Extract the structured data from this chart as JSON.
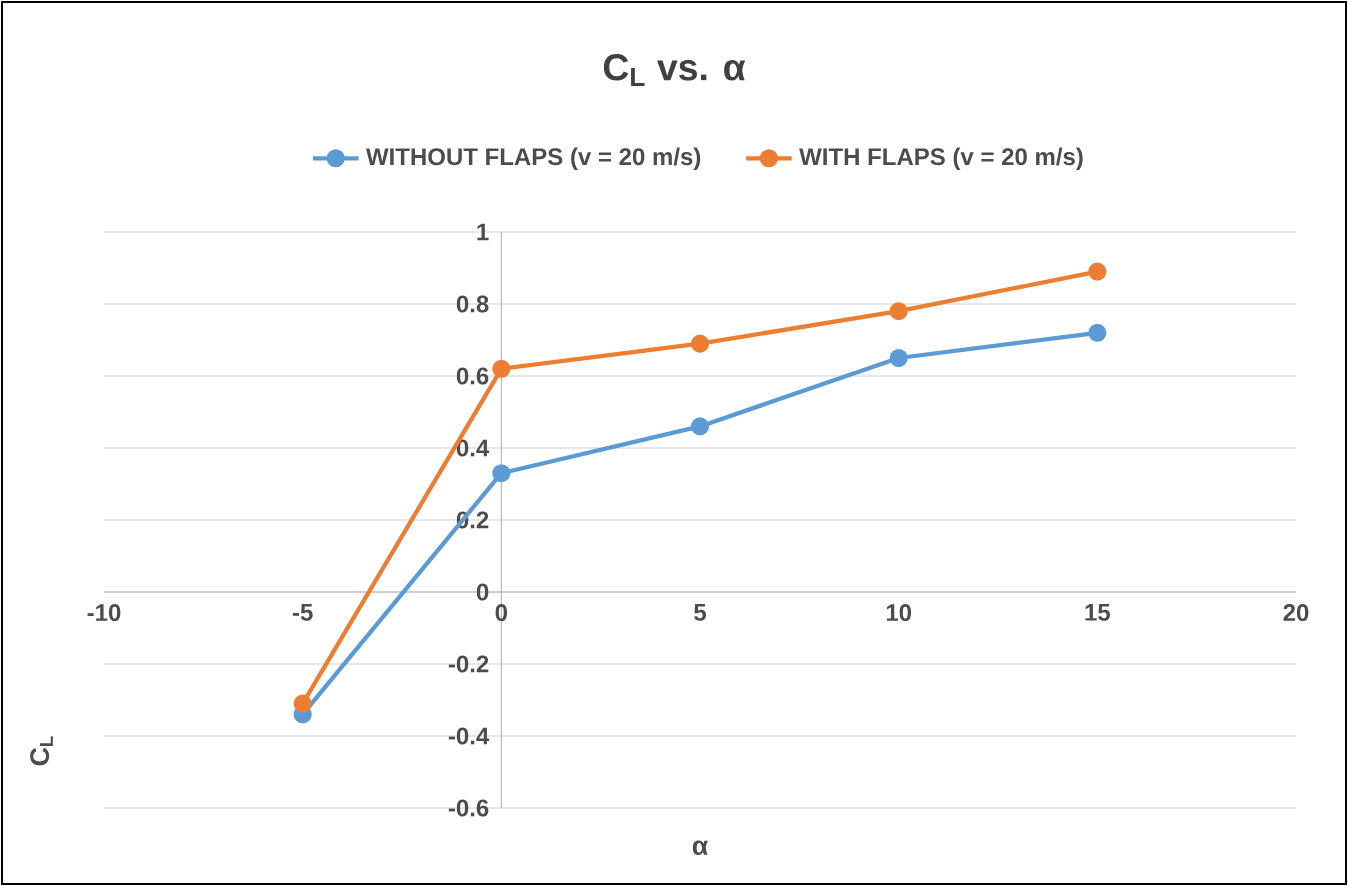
{
  "chart_data": {
    "type": "line",
    "title": "C$_{L}$ vs. α",
    "xlabel": "α",
    "ylabel": "C$_{L}$",
    "x": [
      -5,
      0,
      5,
      10,
      15
    ],
    "series": [
      {
        "name": "WITHOUT FLAPS (v = 20 m/s)",
        "color": "#5b9bd5",
        "values": [
          -0.34,
          0.33,
          0.46,
          0.65,
          0.72
        ]
      },
      {
        "name": "WITH FLAPS (v = 20 m/s)",
        "color": "#ed7d31",
        "values": [
          -0.31,
          0.62,
          0.69,
          0.78,
          0.89
        ]
      }
    ],
    "xlim": [
      -10,
      20
    ],
    "xticks": [
      -10,
      -5,
      0,
      5,
      10,
      15,
      20
    ],
    "ylim": [
      -0.6,
      1
    ],
    "yticks": [
      -0.6,
      -0.4,
      -0.2,
      0,
      0.2,
      0.4,
      0.6,
      0.8,
      1
    ],
    "grid": "y",
    "legend": "top",
    "marker": "circle",
    "line_style": "solid"
  }
}
